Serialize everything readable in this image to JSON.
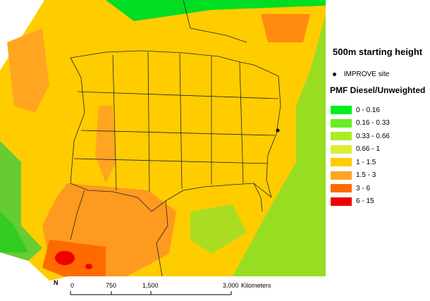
{
  "map": {
    "title": "500m starting height",
    "site_marker_label": "IMPROVE site",
    "legend_heading": "PMF Diesel/Unweighted",
    "legend": [
      {
        "label": "0 - 0.16",
        "color": "#00ee22"
      },
      {
        "label": "0.16 - 0.33",
        "color": "#66ee22"
      },
      {
        "label": "0.33 - 0.66",
        "color": "#aaee22"
      },
      {
        "label": "0.66 - 1",
        "color": "#ddee33"
      },
      {
        "label": "1 - 1.5",
        "color": "#ffcc00"
      },
      {
        "label": "1.5 - 3",
        "color": "#ffa520"
      },
      {
        "label": "3 - 6",
        "color": "#ff6a00"
      },
      {
        "label": "6 - 15",
        "color": "#ee0000"
      }
    ],
    "north_label": "N",
    "scale_bar": {
      "ticks": [
        "0",
        "750",
        "1,500",
        "3,000"
      ],
      "unit": "Kilometers"
    }
  }
}
